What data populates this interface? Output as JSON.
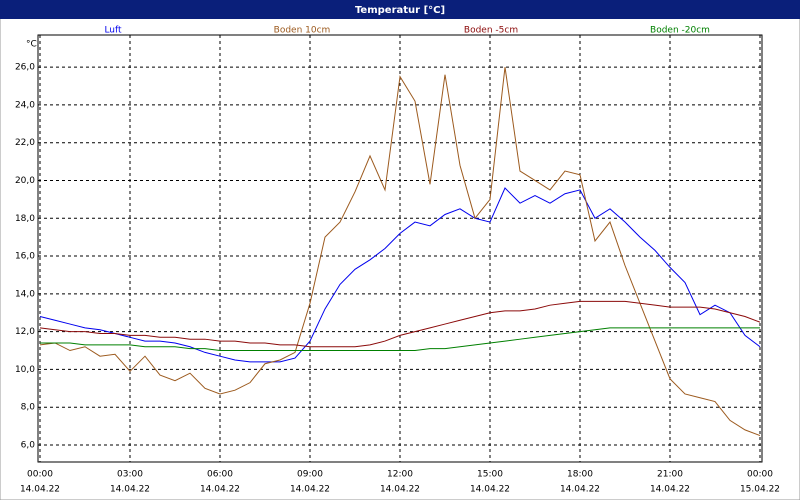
{
  "chart_data": {
    "type": "line",
    "title": "Temperatur [°C]",
    "y_unit": "°C",
    "x": [
      0,
      0.5,
      1,
      1.5,
      2,
      2.5,
      3,
      3.5,
      4,
      4.5,
      5,
      5.5,
      6,
      6.5,
      7,
      7.5,
      8,
      8.5,
      9,
      9.5,
      10,
      10.5,
      11,
      11.5,
      12,
      12.5,
      13,
      13.5,
      14,
      14.5,
      15,
      15.5,
      16,
      16.5,
      17,
      17.5,
      18,
      18.5,
      19,
      19.5,
      20,
      20.5,
      21,
      21.5,
      22,
      22.5,
      23,
      23.5,
      24
    ],
    "xlim": [
      0,
      24
    ],
    "xticks": [
      {
        "value": 0,
        "label": "00:00"
      },
      {
        "value": 3,
        "label": "03:00"
      },
      {
        "value": 6,
        "label": "06:00"
      },
      {
        "value": 9,
        "label": "09:00"
      },
      {
        "value": 12,
        "label": "12:00"
      },
      {
        "value": 15,
        "label": "15:00"
      },
      {
        "value": 18,
        "label": "18:00"
      },
      {
        "value": 21,
        "label": "21:00"
      },
      {
        "value": 24,
        "label": "00:00"
      }
    ],
    "xtick_dates": [
      "14.04.22",
      "14.04.22",
      "14.04.22",
      "14.04.22",
      "14.04.22",
      "14.04.22",
      "14.04.22",
      "14.04.22",
      "15.04.22"
    ],
    "ylim": [
      5.1,
      27.7
    ],
    "yticks": [
      {
        "value": 6,
        "label": "6,0"
      },
      {
        "value": 8,
        "label": "8,0"
      },
      {
        "value": 10,
        "label": "10,0"
      },
      {
        "value": 12,
        "label": "12,0"
      },
      {
        "value": 14,
        "label": "14,0"
      },
      {
        "value": 16,
        "label": "16,0"
      },
      {
        "value": 18,
        "label": "18,0"
      },
      {
        "value": 20,
        "label": "20,0"
      },
      {
        "value": 22,
        "label": "22,0"
      },
      {
        "value": 24,
        "label": "24,0"
      },
      {
        "value": 26,
        "label": "26,0"
      }
    ],
    "grid": true,
    "series": [
      {
        "name": "Luft",
        "color": "#0000ee",
        "values": [
          12.8,
          12.6,
          12.4,
          12.2,
          12.1,
          11.9,
          11.7,
          11.5,
          11.5,
          11.4,
          11.2,
          10.9,
          10.7,
          10.5,
          10.4,
          10.4,
          10.4,
          10.6,
          11.5,
          13.2,
          14.5,
          15.3,
          15.8,
          16.4,
          17.2,
          17.8,
          17.6,
          18.2,
          18.5,
          18.0,
          17.8,
          19.6,
          18.8,
          19.2,
          18.8,
          19.3,
          19.5,
          18.0,
          18.5,
          17.8,
          17.0,
          16.3,
          15.4,
          14.6,
          12.9,
          13.4,
          13.0,
          11.8,
          11.2
        ]
      },
      {
        "name": "Boden 10cm",
        "color": "#9c5a1e",
        "values": [
          11.3,
          11.4,
          11.0,
          11.2,
          10.7,
          10.8,
          9.9,
          10.7,
          9.7,
          9.4,
          9.8,
          9.0,
          8.7,
          8.9,
          9.3,
          10.3,
          10.5,
          10.9,
          13.5,
          17.0,
          17.8,
          19.4,
          21.3,
          19.5,
          25.5,
          24.2,
          19.8,
          25.6,
          20.8,
          18.0,
          19.0,
          26.0,
          20.5,
          20.0,
          19.5,
          20.5,
          20.3,
          16.8,
          17.8,
          15.5,
          13.5,
          11.5,
          9.5,
          8.7,
          8.5,
          8.3,
          7.3,
          6.8,
          6.5
        ]
      },
      {
        "name": "Boden -5cm",
        "color": "#8b0a0a",
        "values": [
          12.2,
          12.1,
          12.0,
          12.0,
          11.9,
          11.9,
          11.8,
          11.8,
          11.7,
          11.7,
          11.6,
          11.6,
          11.5,
          11.5,
          11.4,
          11.4,
          11.3,
          11.3,
          11.2,
          11.2,
          11.2,
          11.2,
          11.3,
          11.5,
          11.8,
          12.0,
          12.2,
          12.4,
          12.6,
          12.8,
          13.0,
          13.1,
          13.1,
          13.2,
          13.4,
          13.5,
          13.6,
          13.6,
          13.6,
          13.6,
          13.5,
          13.4,
          13.3,
          13.3,
          13.3,
          13.2,
          13.0,
          12.8,
          12.5
        ]
      },
      {
        "name": "Boden -20cm",
        "color": "#008000",
        "values": [
          11.4,
          11.4,
          11.4,
          11.3,
          11.3,
          11.3,
          11.3,
          11.2,
          11.2,
          11.2,
          11.1,
          11.1,
          11.0,
          11.0,
          11.0,
          11.0,
          11.0,
          11.0,
          11.0,
          11.0,
          11.0,
          11.0,
          11.0,
          11.0,
          11.0,
          11.0,
          11.1,
          11.1,
          11.2,
          11.3,
          11.4,
          11.5,
          11.6,
          11.7,
          11.8,
          11.9,
          12.0,
          12.1,
          12.2,
          12.2,
          12.2,
          12.2,
          12.2,
          12.2,
          12.2,
          12.2,
          12.2,
          12.2,
          12.2
        ]
      }
    ]
  }
}
